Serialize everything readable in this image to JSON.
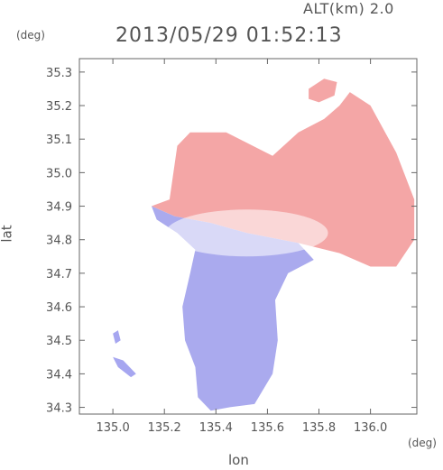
{
  "header": {
    "altitude_label": "ALT(km) 2.0",
    "timestamp": "2013/05/29 01:52:13",
    "y_unit": "(deg)",
    "x_unit": "(deg)"
  },
  "chart_data": {
    "type": "heatmap",
    "title": "2013/05/29 01:52:13",
    "subtitle": "ALT(km) 2.0",
    "xlabel": "lon",
    "ylabel": "lat",
    "x_unit": "deg",
    "y_unit": "deg",
    "xlim": [
      134.87,
      136.18
    ],
    "ylim": [
      34.28,
      35.34
    ],
    "x_ticks": [
      135.0,
      135.2,
      135.4,
      135.6,
      135.8,
      136.0
    ],
    "x_tick_labels": [
      "135.0",
      "135.2",
      "135.4",
      "135.6",
      "135.8",
      "136.0"
    ],
    "y_ticks": [
      34.3,
      34.4,
      34.5,
      34.6,
      34.7,
      34.8,
      34.9,
      35.0,
      35.1,
      35.2,
      35.3
    ],
    "y_tick_labels": [
      "34.3",
      "34.4",
      "34.5",
      "34.6",
      "34.7",
      "34.8",
      "34.9",
      "35.0",
      "35.1",
      "35.2",
      "35.3"
    ],
    "grid": false,
    "radar_center": [
      135.52,
      34.82
    ],
    "colors": {
      "toward": "#8c8cf0",
      "away": "#f09090",
      "neutral": "#ffffff"
    },
    "regions": [
      {
        "name": "north-sector",
        "sign": "positive",
        "color": "#f4a6a6",
        "polygon": [
          [
            135.22,
            34.92
          ],
          [
            135.25,
            35.08
          ],
          [
            135.3,
            35.12
          ],
          [
            135.44,
            35.12
          ],
          [
            135.62,
            35.05
          ],
          [
            135.72,
            35.12
          ],
          [
            135.82,
            35.16
          ],
          [
            135.88,
            35.2
          ],
          [
            135.92,
            35.24
          ],
          [
            136.0,
            35.2
          ],
          [
            136.1,
            35.06
          ],
          [
            136.17,
            34.92
          ],
          [
            136.17,
            34.8
          ],
          [
            136.1,
            34.72
          ],
          [
            136.0,
            34.72
          ],
          [
            135.88,
            34.76
          ],
          [
            135.72,
            34.79
          ],
          [
            135.52,
            34.82
          ],
          [
            135.38,
            34.85
          ],
          [
            135.24,
            34.87
          ],
          [
            135.15,
            34.9
          ]
        ]
      },
      {
        "name": "south-sector",
        "sign": "negative",
        "color": "#aaaaee",
        "polygon": [
          [
            135.15,
            34.9
          ],
          [
            135.24,
            34.87
          ],
          [
            135.38,
            34.85
          ],
          [
            135.52,
            34.82
          ],
          [
            135.72,
            34.79
          ],
          [
            135.78,
            34.74
          ],
          [
            135.68,
            34.7
          ],
          [
            135.63,
            34.62
          ],
          [
            135.64,
            34.5
          ],
          [
            135.62,
            34.4
          ],
          [
            135.55,
            34.31
          ],
          [
            135.45,
            34.3
          ],
          [
            135.38,
            34.29
          ],
          [
            135.33,
            34.33
          ],
          [
            135.32,
            34.42
          ],
          [
            135.28,
            34.5
          ],
          [
            135.27,
            34.6
          ],
          [
            135.3,
            34.7
          ],
          [
            135.32,
            34.77
          ],
          [
            135.25,
            34.82
          ],
          [
            135.17,
            34.86
          ]
        ]
      },
      {
        "name": "north-patch",
        "sign": "positive",
        "color": "#f4a6a6",
        "polygon": [
          [
            135.76,
            35.25
          ],
          [
            135.82,
            35.28
          ],
          [
            135.87,
            35.27
          ],
          [
            135.86,
            35.23
          ],
          [
            135.8,
            35.21
          ],
          [
            135.76,
            35.22
          ]
        ]
      },
      {
        "name": "island-1",
        "sign": "negative",
        "color": "#a6a6f0",
        "polygon": [
          [
            135.0,
            34.52
          ],
          [
            135.02,
            34.53
          ],
          [
            135.03,
            34.5
          ],
          [
            135.01,
            34.49
          ]
        ]
      },
      {
        "name": "island-2",
        "sign": "negative",
        "color": "#a6a6f0",
        "polygon": [
          [
            135.0,
            34.45
          ],
          [
            135.04,
            34.44
          ],
          [
            135.09,
            34.4
          ],
          [
            135.07,
            34.39
          ],
          [
            135.02,
            34.42
          ]
        ]
      }
    ]
  }
}
